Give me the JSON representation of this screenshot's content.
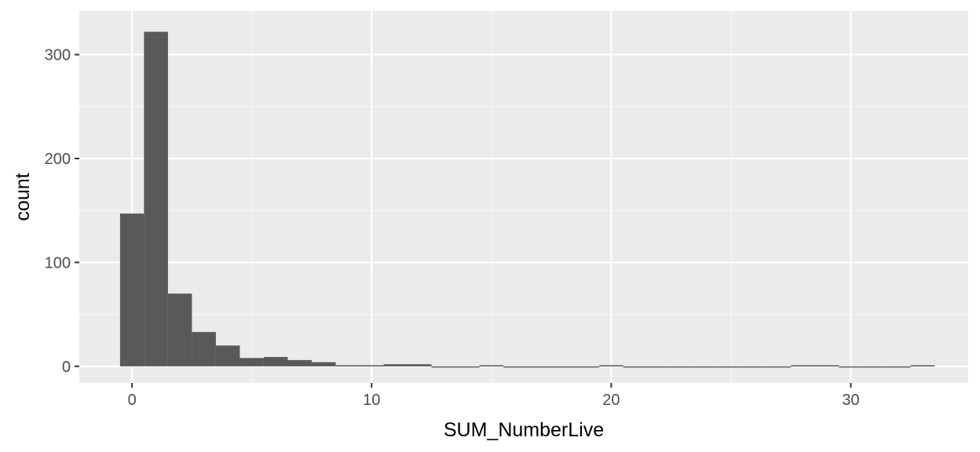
{
  "chart_data": {
    "type": "bar",
    "subtype": "histogram",
    "xlabel": "SUM_NumberLive",
    "ylabel": "count",
    "xlim": [
      -2.2,
      34.9
    ],
    "ylim": [
      -16,
      342
    ],
    "x_ticks": [
      0,
      10,
      20,
      30
    ],
    "y_ticks": [
      0,
      100,
      200,
      300
    ],
    "bin_width": 1,
    "bin_starts": [
      -0.5,
      0.5,
      1.5,
      2.5,
      3.5,
      4.5,
      5.5,
      6.5,
      7.5,
      8.5,
      9.5,
      10.5,
      11.5,
      12.5,
      13.5,
      14.5,
      15.5,
      16.5,
      17.5,
      18.5,
      19.5,
      20.5,
      21.5,
      22.5,
      23.5,
      24.5,
      25.5,
      26.5,
      27.5,
      28.5,
      29.5,
      30.5,
      31.5,
      32.5
    ],
    "values": [
      147,
      322,
      70,
      33,
      20,
      8,
      9,
      6,
      4,
      1,
      1,
      2,
      2,
      0,
      0,
      1,
      0,
      0,
      0,
      0,
      1,
      0,
      0,
      0,
      0,
      0,
      0,
      0,
      1,
      1,
      0,
      0,
      0,
      1
    ],
    "grid": true,
    "colors": {
      "bar": "#595959",
      "panel": "#ebebeb",
      "grid_major": "#ffffff",
      "grid_minor": "#f7f7f7",
      "tick_label": "#4d4d4d",
      "axis_title": "#000000"
    }
  }
}
